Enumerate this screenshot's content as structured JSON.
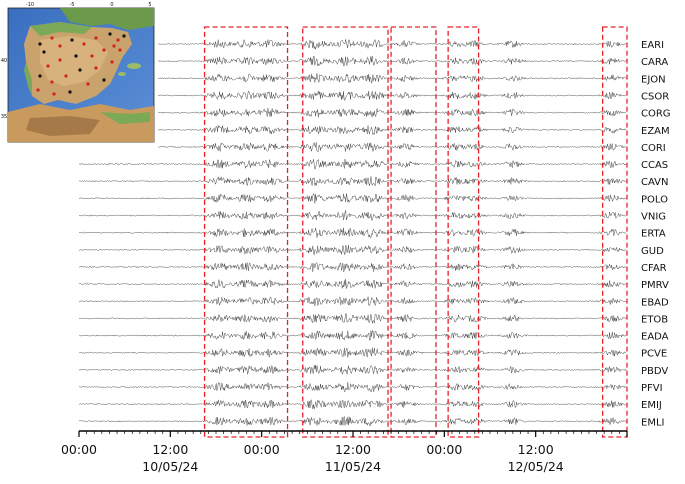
{
  "chart_data": {
    "type": "line",
    "description_kind": "multi-station seismogram record section",
    "stations": [
      "EARI",
      "CARA",
      "EJON",
      "CSOR",
      "CORG",
      "EZAM",
      "CORI",
      "CCAS",
      "CAVN",
      "POLO",
      "VNIG",
      "ERTA",
      "GUD",
      "CFAR",
      "PMRV",
      "EBAD",
      "ETOB",
      "EADA",
      "PCVE",
      "PBDV",
      "PFVI",
      "EMIJ",
      "EMLI"
    ],
    "time_axis": {
      "start_hours": 0,
      "end_hours": 72,
      "ticks": [
        {
          "hours": 0,
          "label": "00:00"
        },
        {
          "hours": 12,
          "label": "12:00"
        },
        {
          "hours": 24,
          "label": "00:00"
        },
        {
          "hours": 36,
          "label": "12:00"
        },
        {
          "hours": 48,
          "label": "00:00"
        },
        {
          "hours": 60,
          "label": "12:00"
        }
      ],
      "date_labels": [
        {
          "hours": 12,
          "label": "10/05/24"
        },
        {
          "hours": 36,
          "label": "11/05/24"
        },
        {
          "hours": 60,
          "label": "12/05/24"
        }
      ],
      "minor_tick_step_hours": 1
    },
    "highlight_windows_hours": [
      [
        16.5,
        27.4
      ],
      [
        29.4,
        40.6
      ],
      [
        41.0,
        46.9
      ],
      [
        48.5,
        52.5
      ],
      [
        68.8,
        72.0
      ]
    ],
    "highlight_color": "#e8202a",
    "trace_color": "#333333"
  },
  "inset_map": {
    "name": "Iberian Peninsula station map",
    "lon_labels": [
      "-10",
      "-5",
      "0",
      "5"
    ],
    "lat_labels": [
      "40",
      "35"
    ]
  }
}
